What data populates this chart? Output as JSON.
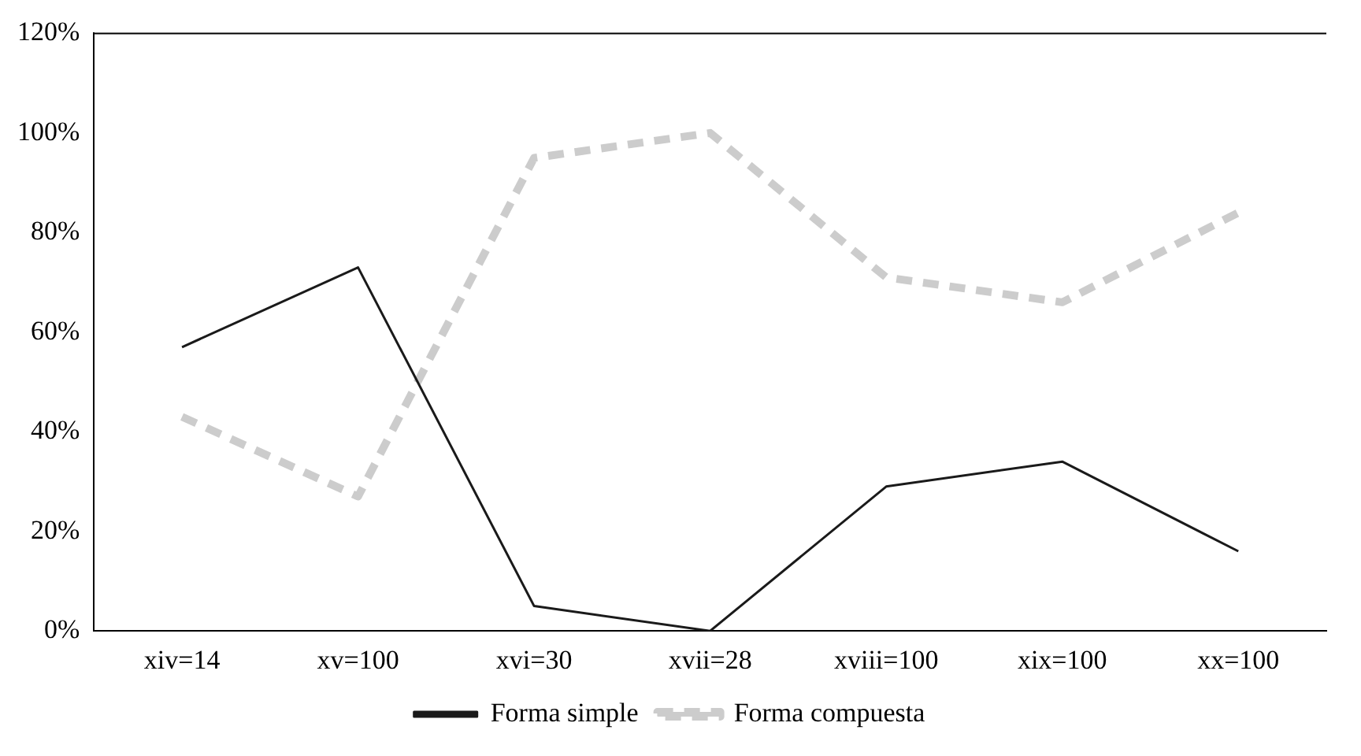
{
  "chart_data": {
    "type": "line",
    "categories": [
      "xiv=14",
      "xv=100",
      "xvi=30",
      "xvii=28",
      "xviii=100",
      "xix=100",
      "xx=100"
    ],
    "series": [
      {
        "name": "Forma simple",
        "color": "#1a1a1a",
        "line_style": "solid",
        "values": [
          57,
          73,
          5,
          0,
          29,
          34,
          16
        ]
      },
      {
        "name": "Forma compuesta",
        "color": "#cccccc",
        "line_style": "dashed",
        "values": [
          43,
          27,
          95,
          100,
          71,
          66,
          84
        ]
      }
    ],
    "ylim": [
      0,
      120
    ],
    "yticks": [
      {
        "value": 0,
        "label": "0%"
      },
      {
        "value": 20,
        "label": "20%"
      },
      {
        "value": 40,
        "label": "40%"
      },
      {
        "value": 60,
        "label": "60%"
      },
      {
        "value": 80,
        "label": "80%"
      },
      {
        "value": 100,
        "label": "100%"
      },
      {
        "value": 120,
        "label": "120%"
      }
    ],
    "grid": false,
    "legend": "bottom",
    "marker": "none"
  }
}
